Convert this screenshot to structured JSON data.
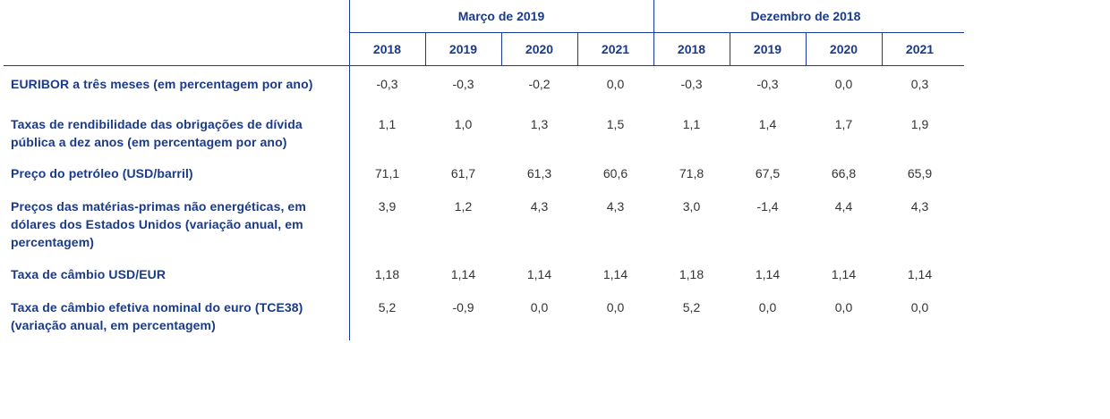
{
  "header": {
    "groups": [
      "Março de 2019",
      "Dezembro de 2018"
    ],
    "years": [
      "2018",
      "2019",
      "2020",
      "2021",
      "2018",
      "2019",
      "2020",
      "2021"
    ]
  },
  "rows": [
    {
      "label": "EURIBOR a três meses (em percentagem por ano)",
      "values": [
        "-0,3",
        "-0,3",
        "-0,2",
        "0,0",
        "-0,3",
        "-0,3",
        "0,0",
        "0,3"
      ]
    },
    {
      "label": "Taxas de rendibilidade das obrigações de dívida pública a dez anos (em percentagem por ano)",
      "values": [
        "1,1",
        "1,0",
        "1,3",
        "1,5",
        "1,1",
        "1,4",
        "1,7",
        "1,9"
      ]
    },
    {
      "label": "Preço do petróleo (USD/barril)",
      "values": [
        "71,1",
        "61,7",
        "61,3",
        "60,6",
        "71,8",
        "67,5",
        "66,8",
        "65,9"
      ]
    },
    {
      "label": "Preços das matérias-primas não energéticas, em dólares dos Estados Unidos (variação anual, em percentagem)",
      "values": [
        "3,9",
        "1,2",
        "4,3",
        "4,3",
        "3,0",
        "-1,4",
        "4,4",
        "4,3"
      ]
    },
    {
      "label": "Taxa de câmbio USD/EUR",
      "values": [
        "1,18",
        "1,14",
        "1,14",
        "1,14",
        "1,18",
        "1,14",
        "1,14",
        "1,14"
      ]
    },
    {
      "label": "Taxa de câmbio efetiva nominal do euro (TCE38) (variação anual, em percentagem)",
      "values": [
        "5,2",
        "-0,9",
        "0,0",
        "0,0",
        "5,2",
        "0,0",
        "0,0",
        "0,0"
      ]
    }
  ]
}
